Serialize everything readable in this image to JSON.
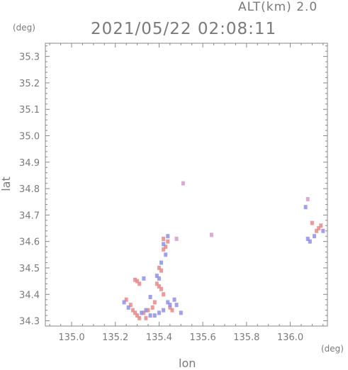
{
  "header": {
    "altitude": "ALT(km) 2.0",
    "timestamp": "2021/05/22 02:08:11"
  },
  "chart_data": {
    "type": "scatter",
    "title": "2021/05/22 02:08:11",
    "subtitle": "ALT(km) 2.0",
    "xlabel": "lon",
    "ylabel": "lat",
    "x_unit": "(deg)",
    "y_unit": "(deg)",
    "xlim": [
      134.88,
      136.17
    ],
    "ylim": [
      34.28,
      35.35
    ],
    "x_ticks": [
      "135.0",
      "135.2",
      "135.4",
      "135.6",
      "135.8",
      "136.0"
    ],
    "y_ticks": [
      "34.3",
      "34.4",
      "34.5",
      "34.6",
      "34.7",
      "34.8",
      "34.9",
      "35.0",
      "35.1",
      "35.2",
      "35.3"
    ],
    "grid": false,
    "colors": {
      "positive": "#e88a8a",
      "negative": "#8f8fe8"
    },
    "series": [
      {
        "color": "#e88a8a",
        "points": [
          [
            135.29,
            34.455
          ],
          [
            135.3,
            34.45
          ],
          [
            135.31,
            34.44
          ],
          [
            135.28,
            34.34
          ],
          [
            135.29,
            34.33
          ],
          [
            135.3,
            34.32
          ],
          [
            135.31,
            34.31
          ],
          [
            135.33,
            34.33
          ],
          [
            135.35,
            34.34
          ],
          [
            135.37,
            34.35
          ],
          [
            135.39,
            34.44
          ],
          [
            135.4,
            34.43
          ],
          [
            135.41,
            34.42
          ],
          [
            135.42,
            34.4
          ],
          [
            135.4,
            34.5
          ],
          [
            135.41,
            34.49
          ],
          [
            135.42,
            34.57
          ],
          [
            135.43,
            34.58
          ],
          [
            135.44,
            34.6
          ],
          [
            135.42,
            34.61
          ],
          [
            135.38,
            34.37
          ],
          [
            135.45,
            34.35
          ],
          [
            135.46,
            34.34
          ],
          [
            136.13,
            34.65
          ],
          [
            136.14,
            34.66
          ],
          [
            136.12,
            34.64
          ],
          [
            136.1,
            34.67
          ],
          [
            135.25,
            34.38
          ],
          [
            135.27,
            34.36
          ],
          [
            135.34,
            34.31
          ]
        ]
      },
      {
        "color": "#8f8fe8",
        "points": [
          [
            135.24,
            34.37
          ],
          [
            135.26,
            34.35
          ],
          [
            135.32,
            34.33
          ],
          [
            135.34,
            34.34
          ],
          [
            135.36,
            34.32
          ],
          [
            135.38,
            34.32
          ],
          [
            135.4,
            34.33
          ],
          [
            135.42,
            34.34
          ],
          [
            135.44,
            34.37
          ],
          [
            135.45,
            34.36
          ],
          [
            135.39,
            34.47
          ],
          [
            135.4,
            34.46
          ],
          [
            135.41,
            34.52
          ],
          [
            135.43,
            34.55
          ],
          [
            135.42,
            34.59
          ],
          [
            135.44,
            34.62
          ],
          [
            135.47,
            34.38
          ],
          [
            135.48,
            34.36
          ],
          [
            135.5,
            34.33
          ],
          [
            136.08,
            34.61
          ],
          [
            136.09,
            34.6
          ],
          [
            136.11,
            34.62
          ],
          [
            136.15,
            34.64
          ],
          [
            136.07,
            34.73
          ],
          [
            135.33,
            34.46
          ],
          [
            135.36,
            34.39
          ]
        ]
      },
      {
        "color": "#d0a0c8",
        "points": [
          [
            135.51,
            34.82
          ],
          [
            135.64,
            34.625
          ],
          [
            135.48,
            34.61
          ],
          [
            136.08,
            34.76
          ]
        ]
      }
    ]
  }
}
